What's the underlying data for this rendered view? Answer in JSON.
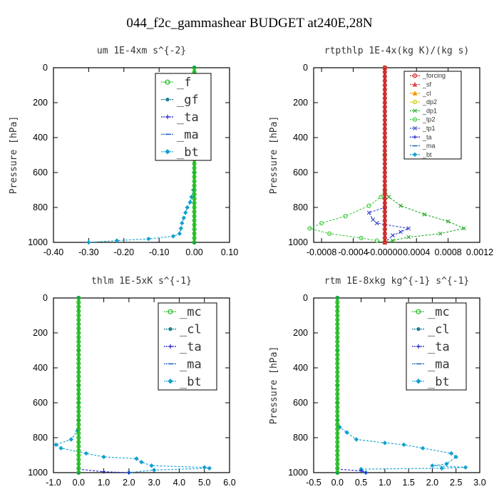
{
  "figure": {
    "title": "044_f2c_gammashear  BUDGET at240E,28N"
  },
  "chart_data": [
    {
      "type": "line",
      "title": "um   1E-4xm s^{-2}",
      "ylabel": "Pressure [hPa]",
      "xlim": [
        -0.4,
        0.1
      ],
      "ylim": [
        0,
        1000
      ],
      "y_inverted": true,
      "x_ticks": [
        "-0.40",
        "-0.30",
        "-0.20",
        "-0.10",
        "0.00",
        "0.10"
      ],
      "x_tick_values": [
        -0.4,
        -0.3,
        -0.2,
        -0.1,
        0.0,
        0.1
      ],
      "y_ticks": [
        "0",
        "200",
        "400",
        "600",
        "800",
        "1000"
      ],
      "y_tick_values": [
        0,
        200,
        400,
        600,
        800,
        1000
      ],
      "legend_style": "big",
      "legend_position": "top-right",
      "series": [
        {
          "name": "_f",
          "color": "#22bb22",
          "marker": "circle",
          "points": [
            [
              0,
              0
            ],
            [
              0,
              100
            ],
            [
              0,
              200
            ],
            [
              0,
              300
            ],
            [
              0,
              400
            ],
            [
              0,
              500
            ],
            [
              0,
              600
            ],
            [
              0,
              700
            ],
            [
              0,
              800
            ],
            [
              0,
              900
            ],
            [
              0,
              1000
            ]
          ]
        },
        {
          "name": "_gf",
          "color": "#1a7f8f",
          "marker": "dot",
          "points": [
            [
              0,
              0
            ],
            [
              0,
              500
            ],
            [
              0,
              1000
            ]
          ]
        },
        {
          "name": "_ta",
          "color": "#2222cc",
          "marker": "plus",
          "points": [
            [
              0,
              0
            ],
            [
              0,
              500
            ],
            [
              0,
              1000
            ]
          ]
        },
        {
          "name": "_ma",
          "color": "#1a5fbf",
          "marker": "dash",
          "points": [
            [
              0,
              0
            ],
            [
              0,
              500
            ],
            [
              0,
              1000
            ]
          ]
        },
        {
          "name": "_bt",
          "color": "#10a0d0",
          "marker": "diamond",
          "points": [
            [
              0,
              0
            ],
            [
              0,
              300
            ],
            [
              0,
              500
            ],
            [
              0,
              600
            ],
            [
              -0.003,
              700
            ],
            [
              -0.008,
              740
            ],
            [
              -0.012,
              770
            ],
            [
              -0.02,
              800
            ],
            [
              -0.025,
              830
            ],
            [
              -0.03,
              860
            ],
            [
              -0.035,
              890
            ],
            [
              -0.038,
              920
            ],
            [
              -0.042,
              950
            ],
            [
              -0.06,
              965
            ],
            [
              -0.13,
              980
            ],
            [
              -0.22,
              990
            ],
            [
              -0.3,
              1000
            ]
          ]
        }
      ]
    },
    {
      "type": "line",
      "title": "rtpthlp   1E-4x(kg K)/(kg s)",
      "ylabel": "Pressure [hPa]",
      "xlim": [
        -0.0009,
        0.0012
      ],
      "ylim": [
        0,
        1000
      ],
      "y_inverted": true,
      "x_ticks": [
        "-0.0008",
        "-0.0004",
        "-0.00000",
        "0.0004",
        "0.0008",
        "0.0012"
      ],
      "x_tick_values": [
        -0.0008,
        -0.0004,
        0.0,
        0.0004,
        0.0008,
        0.0012
      ],
      "y_ticks": [
        "0",
        "200",
        "400",
        "600",
        "800",
        "1000"
      ],
      "y_tick_values": [
        0,
        200,
        400,
        600,
        800,
        1000
      ],
      "legend_style": "small",
      "legend_position": "top-right",
      "series": [
        {
          "name": "_forcing",
          "color": "#cc2222",
          "marker": "circle",
          "points": [
            [
              0,
              0
            ],
            [
              0,
              100
            ],
            [
              0,
              200
            ],
            [
              0,
              300
            ],
            [
              0,
              400
            ],
            [
              0,
              500
            ],
            [
              0,
              600
            ],
            [
              0,
              700
            ],
            [
              0,
              800
            ],
            [
              0,
              900
            ],
            [
              0,
              1000
            ]
          ]
        },
        {
          "name": "_sf",
          "color": "#dd4444",
          "marker": "triangle",
          "points": [
            [
              0,
              0
            ],
            [
              0,
              1000
            ]
          ]
        },
        {
          "name": "_cl",
          "color": "#ee9900",
          "marker": "triangle",
          "points": [
            [
              0,
              0
            ],
            [
              0,
              1000
            ]
          ]
        },
        {
          "name": "_dp2",
          "color": "#cccc00",
          "marker": "circle",
          "points": [
            [
              0,
              0
            ],
            [
              0,
              1000
            ]
          ]
        },
        {
          "name": "_dp1",
          "color": "#22aa22",
          "marker": "cross",
          "points": [
            [
              0,
              0
            ],
            [
              0,
              500
            ],
            [
              0,
              700
            ],
            [
              5e-05,
              740
            ],
            [
              0.0002,
              790
            ],
            [
              0.0005,
              840
            ],
            [
              0.0008,
              880
            ],
            [
              0.001,
              920
            ],
            [
              0.0007,
              950
            ],
            [
              0.0003,
              970
            ],
            [
              0.0001,
              990
            ],
            [
              0,
              1000
            ]
          ]
        },
        {
          "name": "_tp2",
          "color": "#44cc44",
          "marker": "circle",
          "points": [
            [
              0,
              0
            ],
            [
              0,
              500
            ],
            [
              0,
              700
            ],
            [
              -5e-05,
              740
            ],
            [
              -0.0002,
              790
            ],
            [
              -0.0005,
              850
            ],
            [
              -0.0008,
              890
            ],
            [
              -0.00095,
              920
            ],
            [
              -0.0007,
              950
            ],
            [
              -0.0003,
              975
            ],
            [
              -0.0001,
              990
            ],
            [
              0,
              1000
            ]
          ]
        },
        {
          "name": "_tp1",
          "color": "#3344cc",
          "marker": "cross",
          "points": [
            [
              0,
              0
            ],
            [
              0,
              800
            ],
            [
              -0.0002,
              830
            ],
            [
              -0.00015,
              870
            ],
            [
              -0.0001,
              890
            ],
            [
              0.0003,
              920
            ],
            [
              0.0002,
              940
            ],
            [
              0.0001,
              960
            ],
            [
              0,
              1000
            ]
          ]
        },
        {
          "name": "_ta",
          "color": "#2222cc",
          "marker": "plus",
          "points": [
            [
              0,
              0
            ],
            [
              0,
              1000
            ]
          ]
        },
        {
          "name": "_ma",
          "color": "#1a5fbf",
          "marker": "dash",
          "points": [
            [
              0,
              0
            ],
            [
              0,
              1000
            ]
          ]
        },
        {
          "name": "_bt",
          "color": "#10a0d0",
          "marker": "diamond",
          "points": [
            [
              0,
              0
            ],
            [
              0,
              1000
            ]
          ]
        }
      ]
    },
    {
      "type": "line",
      "title": "thlm   1E-5xK s^{-1}",
      "ylabel": "",
      "xlim": [
        -1.0,
        6.0
      ],
      "ylim": [
        0,
        1000
      ],
      "y_inverted": true,
      "x_ticks": [
        "-1.0",
        "0.0",
        "1.0",
        "2.0",
        "3.0",
        "4.0",
        "5.0",
        "6.0"
      ],
      "x_tick_values": [
        -1,
        0,
        1,
        2,
        3,
        4,
        5,
        6
      ],
      "y_ticks": [
        "0",
        "200",
        "400",
        "600",
        "800",
        "1000"
      ],
      "y_tick_values": [
        0,
        200,
        400,
        600,
        800,
        1000
      ],
      "legend_style": "big",
      "legend_position": "top-right",
      "series": [
        {
          "name": "_mc",
          "color": "#22bb22",
          "marker": "circle",
          "points": [
            [
              0,
              0
            ],
            [
              0,
              100
            ],
            [
              0,
              200
            ],
            [
              0,
              300
            ],
            [
              0,
              400
            ],
            [
              0,
              500
            ],
            [
              0,
              600
            ],
            [
              0,
              700
            ],
            [
              0,
              800
            ],
            [
              0,
              900
            ],
            [
              0,
              1000
            ]
          ]
        },
        {
          "name": "_cl",
          "color": "#1a7f8f",
          "marker": "dot",
          "points": [
            [
              0,
              0
            ],
            [
              0,
              500
            ],
            [
              0,
              1000
            ]
          ]
        },
        {
          "name": "_ta",
          "color": "#2222cc",
          "marker": "plus",
          "points": [
            [
              0,
              0
            ],
            [
              0,
              980
            ],
            [
              1,
              995
            ],
            [
              2,
              1000
            ]
          ]
        },
        {
          "name": "_ma",
          "color": "#1a5fbf",
          "marker": "dash",
          "points": [
            [
              0,
              0
            ],
            [
              0,
              1000
            ]
          ]
        },
        {
          "name": "_bt",
          "color": "#10a0d0",
          "marker": "diamond",
          "points": [
            [
              0,
              0
            ],
            [
              0,
              300
            ],
            [
              0,
              500
            ],
            [
              0,
              600
            ],
            [
              0,
              700
            ],
            [
              -0.05,
              760
            ],
            [
              -0.3,
              810
            ],
            [
              -0.9,
              840
            ],
            [
              -0.7,
              860
            ],
            [
              0.3,
              890
            ],
            [
              1.0,
              910
            ],
            [
              2.3,
              920
            ],
            [
              2.5,
              940
            ],
            [
              2.9,
              960
            ],
            [
              5.0,
              970
            ],
            [
              5.2,
              975
            ],
            [
              3.0,
              985
            ],
            [
              2.0,
              1000
            ]
          ]
        }
      ]
    },
    {
      "type": "line",
      "title": "rtm   1E-8xkg kg^{-1} s^{-1}",
      "ylabel": "Pressure [hPa]",
      "xlim": [
        -0.5,
        3.0
      ],
      "ylim": [
        0,
        1000
      ],
      "y_inverted": true,
      "x_ticks": [
        "-0.5",
        "0.0",
        "0.5",
        "1.0",
        "1.5",
        "2.0",
        "2.5",
        "3.0"
      ],
      "x_tick_values": [
        -0.5,
        0.0,
        0.5,
        1.0,
        1.5,
        2.0,
        2.5,
        3.0
      ],
      "y_ticks": [
        "0",
        "200",
        "400",
        "600",
        "800",
        "1000"
      ],
      "y_tick_values": [
        0,
        200,
        400,
        600,
        800,
        1000
      ],
      "legend_style": "big",
      "legend_position": "top-right",
      "series": [
        {
          "name": "_mc",
          "color": "#22bb22",
          "marker": "circle",
          "points": [
            [
              0,
              0
            ],
            [
              0,
              100
            ],
            [
              0,
              200
            ],
            [
              0,
              300
            ],
            [
              0,
              400
            ],
            [
              0,
              500
            ],
            [
              0,
              600
            ],
            [
              0,
              700
            ],
            [
              0,
              800
            ],
            [
              0,
              900
            ],
            [
              0,
              1000
            ]
          ]
        },
        {
          "name": "_cl",
          "color": "#1a7f8f",
          "marker": "dot",
          "points": [
            [
              0,
              0
            ],
            [
              0,
              500
            ],
            [
              0,
              1000
            ]
          ]
        },
        {
          "name": "_ta",
          "color": "#2222cc",
          "marker": "plus",
          "points": [
            [
              0,
              0
            ],
            [
              0,
              980
            ],
            [
              0.5,
              990
            ],
            [
              0.6,
              1000
            ]
          ]
        },
        {
          "name": "_ma",
          "color": "#1a5fbf",
          "marker": "dash",
          "points": [
            [
              0,
              0
            ],
            [
              0,
              1000
            ]
          ]
        },
        {
          "name": "_bt",
          "color": "#10a0d0",
          "marker": "diamond",
          "points": [
            [
              0,
              0
            ],
            [
              0,
              300
            ],
            [
              0,
              500
            ],
            [
              0,
              600
            ],
            [
              0,
              700
            ],
            [
              0.05,
              740
            ],
            [
              0.2,
              770
            ],
            [
              0.4,
              810
            ],
            [
              1.0,
              830
            ],
            [
              1.4,
              840
            ],
            [
              1.8,
              860
            ],
            [
              2.4,
              890
            ],
            [
              2.5,
              910
            ],
            [
              2.3,
              950
            ],
            [
              2.0,
              960
            ],
            [
              2.7,
              970
            ],
            [
              2.2,
              975
            ],
            [
              0.5,
              980
            ],
            [
              0.6,
              1000
            ]
          ]
        }
      ]
    }
  ]
}
